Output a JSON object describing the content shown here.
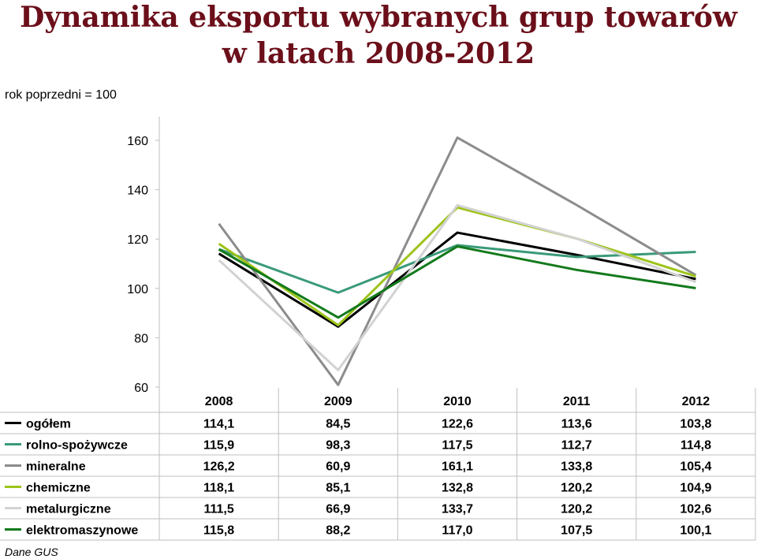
{
  "title_line1": "Dynamika eksportu wybranych grup towarów",
  "title_line2": "w latach 2008-2012",
  "unit_note": "rok poprzedni = 100",
  "source": "Dane GUS",
  "chart_data": {
    "type": "line",
    "x": [
      "2008",
      "2009",
      "2010",
      "2011",
      "2012"
    ],
    "ylim": [
      60,
      160
    ],
    "yticks": [
      "60",
      "80",
      "100",
      "120",
      "140",
      "160"
    ],
    "grid": false,
    "legend": "data-table-left",
    "series": [
      {
        "name": "ogółem",
        "color": "#000000",
        "values": [
          114.1,
          84.5,
          122.6,
          113.6,
          103.8
        ],
        "labels": [
          "114,1",
          "84,5",
          "122,6",
          "113,6",
          "103,8"
        ]
      },
      {
        "name": "rolno-spożywcze",
        "color": "#3a9a78",
        "values": [
          115.9,
          98.3,
          117.5,
          112.7,
          114.8
        ],
        "labels": [
          "115,9",
          "98,3",
          "117,5",
          "112,7",
          "114,8"
        ]
      },
      {
        "name": "mineralne",
        "color": "#8c8c8c",
        "values": [
          126.2,
          60.9,
          161.1,
          133.8,
          105.4
        ],
        "labels": [
          "126,2",
          "60,9",
          "161,1",
          "133,8",
          "105,4"
        ]
      },
      {
        "name": "chemiczne",
        "color": "#9dc41a",
        "values": [
          118.1,
          85.1,
          132.8,
          120.2,
          104.9
        ],
        "labels": [
          "118,1",
          "85,1",
          "132,8",
          "120,2",
          "104,9"
        ]
      },
      {
        "name": "metalurgiczne",
        "color": "#d2d2d2",
        "values": [
          111.5,
          66.9,
          133.7,
          120.2,
          102.6
        ],
        "labels": [
          "111,5",
          "66,9",
          "133,7",
          "120,2",
          "102,6"
        ]
      },
      {
        "name": "elektromaszynowe",
        "color": "#137a1c",
        "values": [
          115.8,
          88.2,
          117.0,
          107.5,
          100.1
        ],
        "labels": [
          "115,8",
          "88,2",
          "117,0",
          "107,5",
          "100,1"
        ]
      }
    ]
  }
}
